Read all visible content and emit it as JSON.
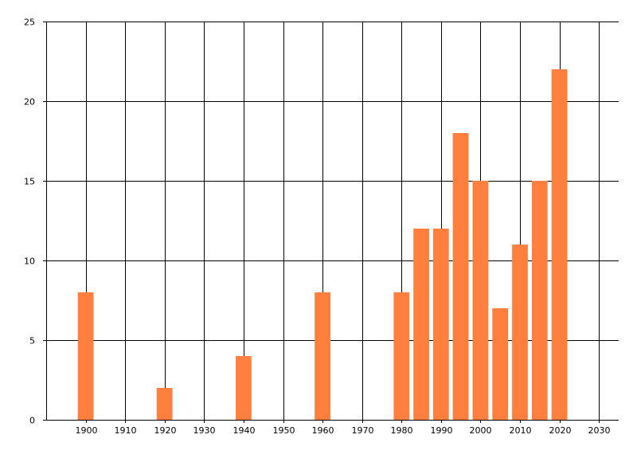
{
  "chart_data": {
    "type": "bar",
    "x": [
      1900,
      1920,
      1940,
      1960,
      1980,
      1985,
      1990,
      1995,
      2000,
      2005,
      2010,
      2015,
      2020
    ],
    "values": [
      8,
      2,
      4,
      8,
      8,
      12,
      12,
      18,
      15,
      7,
      11,
      15,
      22
    ],
    "xlim": [
      1890,
      2035
    ],
    "ylim": [
      0,
      25
    ],
    "xticks": [
      1900,
      1910,
      1920,
      1930,
      1940,
      1950,
      1960,
      1970,
      1980,
      1990,
      2000,
      2010,
      2020,
      2030
    ],
    "yticks": [
      0,
      5,
      10,
      15,
      20,
      25
    ],
    "bar_width_years": 4,
    "grid": true,
    "title": "",
    "xlabel": "",
    "ylabel": "",
    "colors": {
      "bar": "#ff7f3f",
      "grid": "#000000",
      "axis": "#000000"
    }
  }
}
